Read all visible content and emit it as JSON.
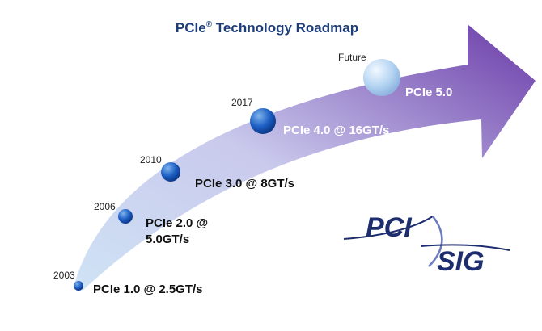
{
  "title": {
    "parts": [
      "PCIe",
      "®",
      " Technology Roadmap"
    ]
  },
  "milestones": [
    {
      "year": "2003",
      "label": [
        "PCIe 1.0 @ 2.5GT/s"
      ]
    },
    {
      "year": "2006",
      "label": [
        "PCIe 2.0 @",
        "5.0GT/s"
      ]
    },
    {
      "year": "2010",
      "label": [
        "PCIe 3.0 @ 8GT/s"
      ]
    },
    {
      "year": "2017",
      "label": [
        "PCIe 4.0 @ 16GT/s"
      ]
    },
    {
      "year": "Future",
      "label": [
        "PCIe 5.0"
      ]
    }
  ],
  "logo": {
    "top": "PCI",
    "bottom": "SIG"
  }
}
